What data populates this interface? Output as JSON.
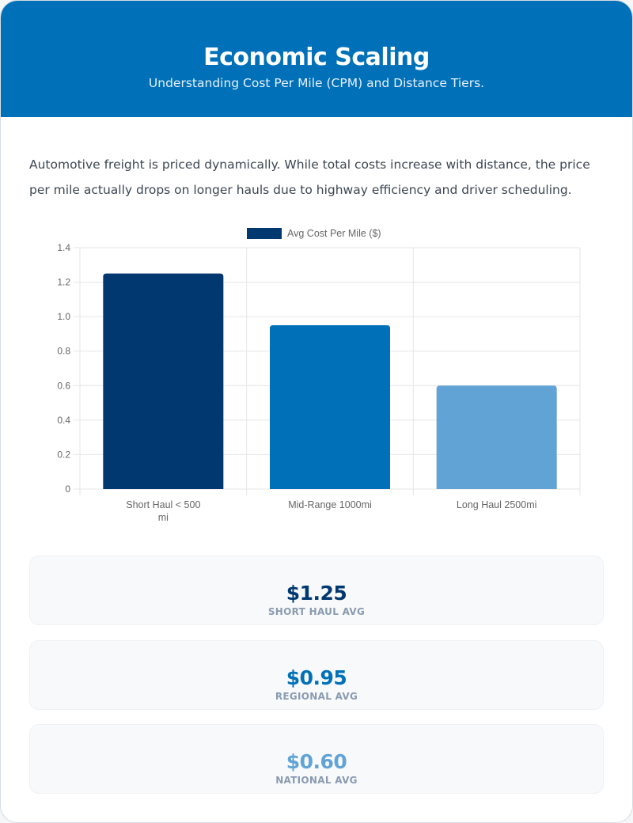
{
  "header": {
    "title": "Economic Scaling",
    "subtitle": "Understanding Cost Per Mile (CPM) and Distance Tiers."
  },
  "intro": "Automotive freight is priced dynamically. While total costs increase with distance, the price per mile actually drops on longer hauls due to highway efficiency and driver scheduling.",
  "chart_data": {
    "type": "bar",
    "categories": [
      [
        "Short Haul < 500",
        "mi"
      ],
      [
        "Mid-Range 1000mi"
      ],
      [
        "Long Haul 2500mi"
      ]
    ],
    "series": [
      {
        "name": "Avg Cost Per Mile ($)",
        "values": [
          1.25,
          0.95,
          0.6
        ]
      }
    ],
    "bar_colors": [
      "#00386f",
      "#0071b8",
      "#62a3d6"
    ],
    "legend_color": "#00386f",
    "ylim": [
      0,
      1.4
    ],
    "yticks": [
      "0",
      "0.2",
      "0.4",
      "0.6",
      "0.8",
      "1.0",
      "1.2",
      "1.4"
    ],
    "grid": true,
    "legend": "top"
  },
  "stats": [
    {
      "value": "$1.25",
      "label": "SHORT HAUL AVG",
      "color": "#00386f"
    },
    {
      "value": "$0.95",
      "label": "REGIONAL AVG",
      "color": "#0071b8"
    },
    {
      "value": "$0.60",
      "label": "NATIONAL AVG",
      "color": "#62a3d6"
    }
  ]
}
